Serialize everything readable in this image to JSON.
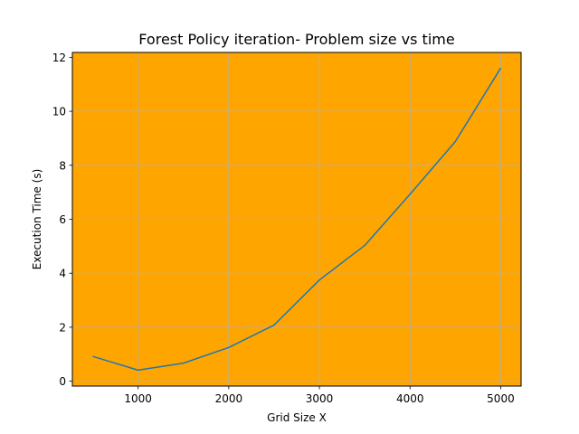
{
  "chart_data": {
    "type": "line",
    "title": "Forest Policy iteration- Problem size vs time",
    "xlabel": "Grid Size X",
    "ylabel": "Execution Time (s)",
    "x": [
      500,
      1000,
      1500,
      2000,
      2500,
      3000,
      3500,
      4000,
      4500,
      5000
    ],
    "series": [
      {
        "values": [
          0.92,
          0.41,
          0.67,
          1.25,
          2.08,
          3.75,
          5.03,
          6.93,
          8.88,
          11.6
        ],
        "color": "#1f77b4"
      }
    ],
    "xlim": [
      275,
      5225
    ],
    "ylim": [
      -0.18,
      12.18
    ],
    "xticks": [
      1000,
      2000,
      3000,
      4000,
      5000
    ],
    "yticks": [
      0,
      2,
      4,
      6,
      8,
      10,
      12
    ],
    "xtick_labels": [
      "1000",
      "2000",
      "3000",
      "4000",
      "5000"
    ],
    "ytick_labels": [
      "0",
      "2",
      "4",
      "6",
      "8",
      "10",
      "12"
    ],
    "grid": true,
    "grid_color": "#b0b0b0",
    "plot_background": "#ffa500",
    "figure_background": "#ffffff"
  }
}
